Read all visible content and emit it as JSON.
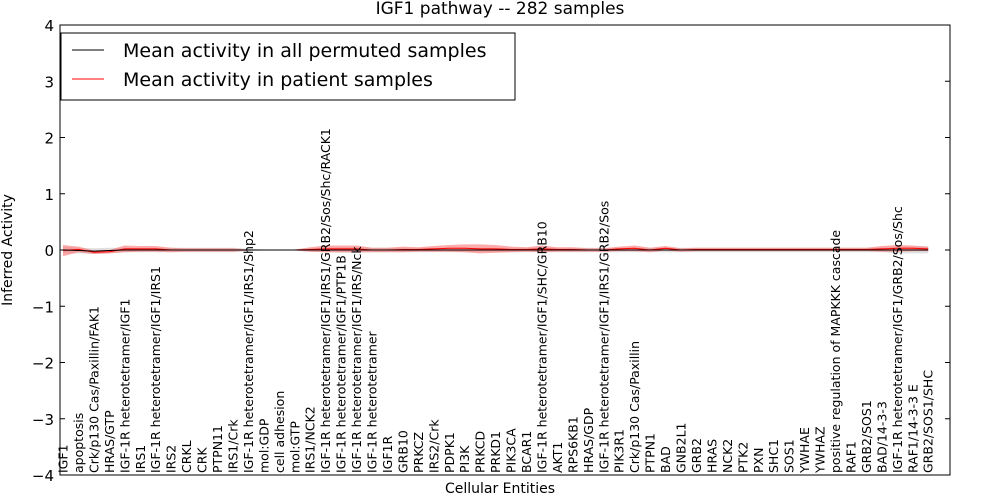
{
  "chart_data": {
    "type": "line",
    "title": "IGF1 pathway -- 282 samples",
    "xlabel": "Cellular Entities",
    "ylabel": "Inferred Activity",
    "ylim": [
      -4,
      4
    ],
    "yticks": [
      -4,
      -3,
      -2,
      -1,
      0,
      1,
      2,
      3,
      4
    ],
    "ytick_labels": [
      "−4",
      "−3",
      "−2",
      "−1",
      "0",
      "1",
      "2",
      "3",
      "4"
    ],
    "legend_position": "top-left",
    "colors": {
      "permuted_line": "#000000",
      "permuted_band": "#bfbfbf",
      "patient_line": "#ff0000",
      "patient_band": "#ff6666"
    },
    "categories": [
      "IGF1",
      "apoptosis",
      "Crk/p130 Cas/Paxillin/FAK1",
      "HRAS/GTP",
      "IGF-1R heterotetramer/IGF1",
      "IRS1",
      "IGF-1R heterotetramer/IGF1/IRS1",
      "IRS2",
      "CRKL",
      "CRK",
      "PTPN11",
      "IRS1/Crk",
      "IGF-1R heterotetramer/IGF1/IRS1/Shp2",
      "mol:GDP",
      "cell adhesion",
      "mol:GTP",
      "IRS1/NCK2",
      "IGF-1R heterotetramer/IGF1/IRS1/GRB2/Sos/Shc/RACK1",
      "IGF-1R heterotetramer/IGF1/PTP1B",
      "IGF-1R heterotetramer/IGF1/IRS/Nck",
      "IGF-1R heterotetramer",
      "IGF1R",
      "GRB10",
      "PRKCZ",
      "IRS2/Crk",
      "PDPK1",
      "PI3K",
      "PRKCD",
      "PRKD1",
      "PIK3CA",
      "BCAR1",
      "IGF-1R heterotetramer/IGF1/SHC/GRB10",
      "AKT1",
      "RPS6KB1",
      "HRAS/GDP",
      "IGF-1R heterotetramer/IGF1/IRS1/GRB2/Sos",
      "PIK3R1",
      "Crk/p130 Cas/Paxillin",
      "PTPN1",
      "BAD",
      "GNB2L1",
      "GRB2",
      "HRAS",
      "NCK2",
      "PTK2",
      "PXN",
      "SHC1",
      "SOS1",
      "YWHAE",
      "YWHAZ",
      "positive regulation of MAPKKK cascade",
      "RAF1",
      "GRB2/SOS1",
      "BAD/14-3-3",
      "IGF-1R heterotetramer/IGF1/GRB2/Sos/Shc",
      "RAF1/14-3-3 E",
      "GRB2/SOS1/SHC"
    ],
    "series": [
      {
        "name": "Mean activity in all permuted samples",
        "color": "#000000",
        "values": [
          0.0,
          -0.01,
          -0.02,
          -0.01,
          0.0,
          0.0,
          0.0,
          0.0,
          0.0,
          0.0,
          0.0,
          0.0,
          0.0,
          0.0,
          0.0,
          0.0,
          0.0,
          0.0,
          0.0,
          0.0,
          0.0,
          0.0,
          0.0,
          0.0,
          0.0,
          0.0,
          0.0,
          0.0,
          0.0,
          0.0,
          0.0,
          0.0,
          0.0,
          0.0,
          0.0,
          0.0,
          0.0,
          0.0,
          0.0,
          0.0,
          0.0,
          0.0,
          0.0,
          0.0,
          0.0,
          0.0,
          0.0,
          0.0,
          0.0,
          0.0,
          0.0,
          0.0,
          0.0,
          0.0,
          0.0,
          0.0,
          0.0
        ],
        "spread": [
          0.06,
          0.05,
          0.05,
          0.05,
          0.04,
          0.04,
          0.04,
          0.04,
          0.04,
          0.04,
          0.04,
          0.04,
          0.02,
          0.01,
          0.01,
          0.01,
          0.03,
          0.04,
          0.05,
          0.05,
          0.04,
          0.04,
          0.04,
          0.04,
          0.04,
          0.04,
          0.04,
          0.04,
          0.04,
          0.04,
          0.04,
          0.04,
          0.04,
          0.04,
          0.04,
          0.04,
          0.04,
          0.04,
          0.04,
          0.04,
          0.04,
          0.04,
          0.04,
          0.04,
          0.04,
          0.04,
          0.04,
          0.04,
          0.04,
          0.04,
          0.04,
          0.04,
          0.04,
          0.04,
          0.06,
          0.06,
          0.06
        ]
      },
      {
        "name": "Mean activity in patient samples",
        "color": "#ff0000",
        "values": [
          -0.01,
          0.01,
          -0.04,
          -0.03,
          0.02,
          0.02,
          0.02,
          0.0,
          0.0,
          0.0,
          0.0,
          0.0,
          0.0,
          0.0,
          0.0,
          0.0,
          0.01,
          0.02,
          0.02,
          0.02,
          0.0,
          0.0,
          0.01,
          0.01,
          0.02,
          0.03,
          0.03,
          0.02,
          0.02,
          0.01,
          0.01,
          0.02,
          0.01,
          0.01,
          0.0,
          0.0,
          0.02,
          0.03,
          0.0,
          0.03,
          0.0,
          0.01,
          0.01,
          0.01,
          0.01,
          0.01,
          0.01,
          0.01,
          0.01,
          0.01,
          0.01,
          0.01,
          0.01,
          0.02,
          0.03,
          0.03,
          0.02
        ],
        "spread": [
          0.1,
          0.05,
          0.03,
          0.03,
          0.06,
          0.05,
          0.05,
          0.04,
          0.03,
          0.03,
          0.03,
          0.03,
          0.01,
          0.01,
          0.0,
          0.01,
          0.04,
          0.06,
          0.06,
          0.06,
          0.04,
          0.04,
          0.05,
          0.04,
          0.05,
          0.06,
          0.07,
          0.08,
          0.07,
          0.05,
          0.04,
          0.06,
          0.04,
          0.04,
          0.03,
          0.03,
          0.04,
          0.05,
          0.04,
          0.04,
          0.03,
          0.03,
          0.03,
          0.03,
          0.03,
          0.03,
          0.03,
          0.03,
          0.03,
          0.03,
          0.03,
          0.03,
          0.03,
          0.05,
          0.06,
          0.05,
          0.04
        ]
      }
    ]
  }
}
